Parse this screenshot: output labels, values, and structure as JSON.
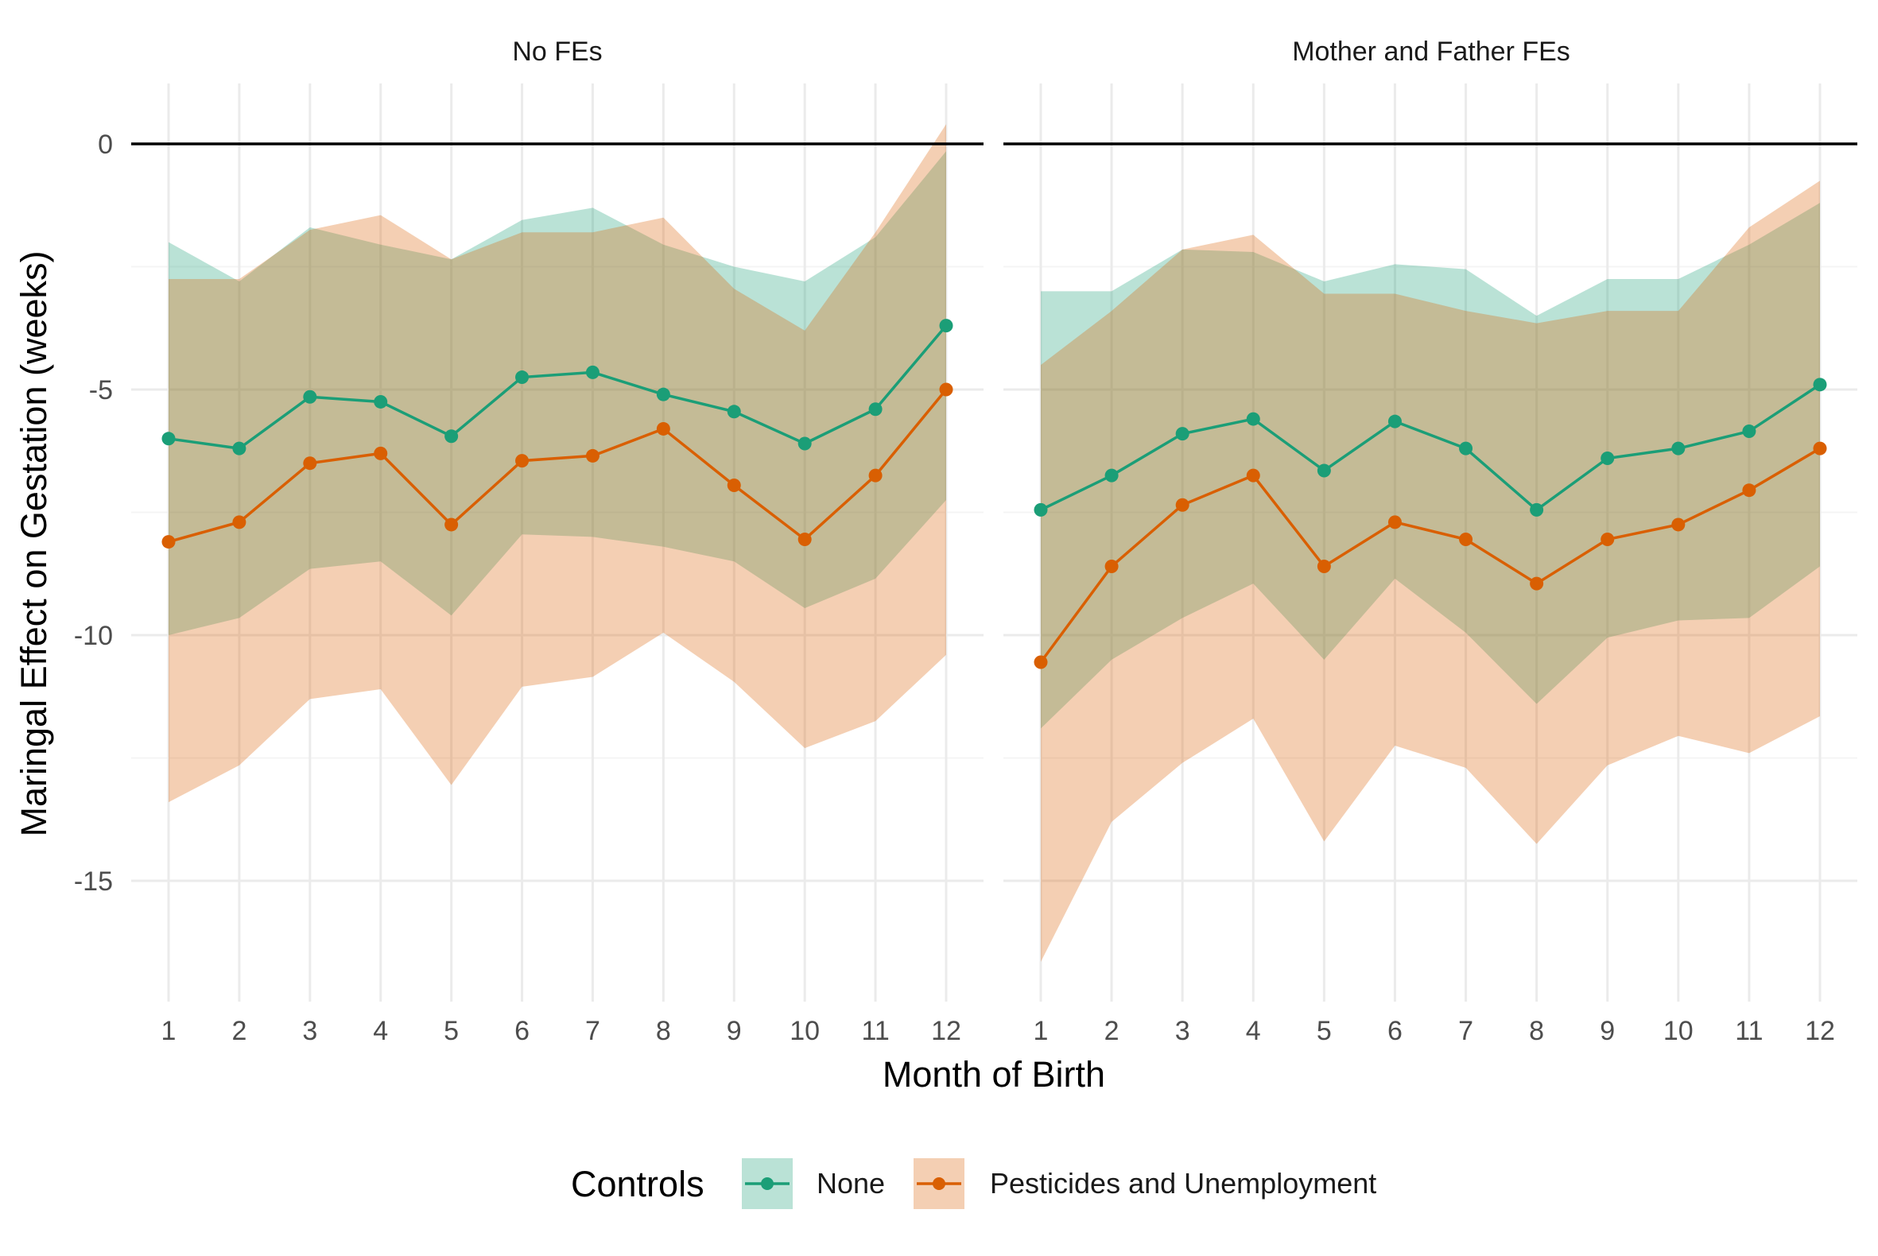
{
  "chart_data": {
    "type": "line",
    "xlabel": "Month of Birth",
    "ylabel": "Maringal Effect on Gestation (weeks)",
    "x": [
      1,
      2,
      3,
      4,
      5,
      6,
      7,
      8,
      9,
      10,
      11,
      12
    ],
    "x_ticks": [
      "1",
      "2",
      "3",
      "4",
      "5",
      "6",
      "7",
      "8",
      "9",
      "10",
      "11",
      "12"
    ],
    "ylim": [
      -17.5,
      1.3
    ],
    "y_ticks": [
      0,
      -5,
      -10,
      -15
    ],
    "y_tick_labels": [
      "0",
      "-5",
      "-10",
      "-15"
    ],
    "reference_line": 0,
    "grid": true,
    "legend": {
      "title": "Controls",
      "position": "bottom",
      "entries": [
        "None",
        "Pesticides and Unemployment"
      ]
    },
    "colors": {
      "None": "#1b9e77",
      "Pesticides and Unemployment": "#d95f02",
      "grid": "#ebebeb",
      "reference": "#000000"
    },
    "panels": [
      {
        "title": "No FEs",
        "series": [
          {
            "name": "None",
            "values": [
              -6.0,
              -6.2,
              -5.15,
              -5.25,
              -5.95,
              -4.75,
              -4.65,
              -5.1,
              -5.45,
              -6.1,
              -5.4,
              -3.7
            ],
            "lower": [
              -10.0,
              -9.65,
              -8.65,
              -8.5,
              -9.6,
              -7.95,
              -8.0,
              -8.2,
              -8.5,
              -9.45,
              -8.85,
              -7.25
            ],
            "upper": [
              -2.0,
              -2.8,
              -1.7,
              -2.05,
              -2.35,
              -1.55,
              -1.3,
              -2.05,
              -2.5,
              -2.8,
              -1.9,
              -0.15
            ]
          },
          {
            "name": "Pesticides and Unemployment",
            "values": [
              -8.1,
              -7.7,
              -6.5,
              -6.3,
              -7.75,
              -6.45,
              -6.35,
              -5.8,
              -6.95,
              -8.05,
              -6.75,
              -5.0
            ],
            "lower": [
              -13.4,
              -12.65,
              -11.3,
              -11.1,
              -13.05,
              -11.05,
              -10.85,
              -9.95,
              -10.95,
              -12.3,
              -11.75,
              -10.4
            ],
            "upper": [
              -2.75,
              -2.75,
              -1.75,
              -1.45,
              -2.35,
              -1.8,
              -1.8,
              -1.5,
              -2.95,
              -3.8,
              -1.8,
              0.4
            ]
          }
        ]
      },
      {
        "title": "Mother and Father FEs",
        "series": [
          {
            "name": "None",
            "values": [
              -7.45,
              -6.75,
              -5.9,
              -5.6,
              -6.65,
              -5.65,
              -6.2,
              -7.45,
              -6.4,
              -6.2,
              -5.85,
              -4.9
            ],
            "lower": [
              -11.9,
              -10.5,
              -9.65,
              -8.95,
              -10.5,
              -8.85,
              -9.95,
              -11.4,
              -10.05,
              -9.7,
              -9.65,
              -8.6
            ],
            "upper": [
              -3.0,
              -3.0,
              -2.15,
              -2.2,
              -2.8,
              -2.45,
              -2.55,
              -3.5,
              -2.75,
              -2.75,
              -2.05,
              -1.2
            ]
          },
          {
            "name": "Pesticides and Unemployment",
            "values": [
              -10.55,
              -8.6,
              -7.35,
              -6.75,
              -8.6,
              -7.7,
              -8.05,
              -8.95,
              -8.05,
              -7.75,
              -7.05,
              -6.2
            ],
            "lower": [
              -16.65,
              -13.8,
              -12.6,
              -11.7,
              -14.2,
              -12.25,
              -12.7,
              -14.25,
              -12.65,
              -12.05,
              -12.4,
              -11.65
            ],
            "upper": [
              -4.5,
              -3.4,
              -2.15,
              -1.85,
              -3.05,
              -3.05,
              -3.4,
              -3.65,
              -3.4,
              -3.4,
              -1.7,
              -0.75
            ]
          }
        ]
      }
    ]
  }
}
